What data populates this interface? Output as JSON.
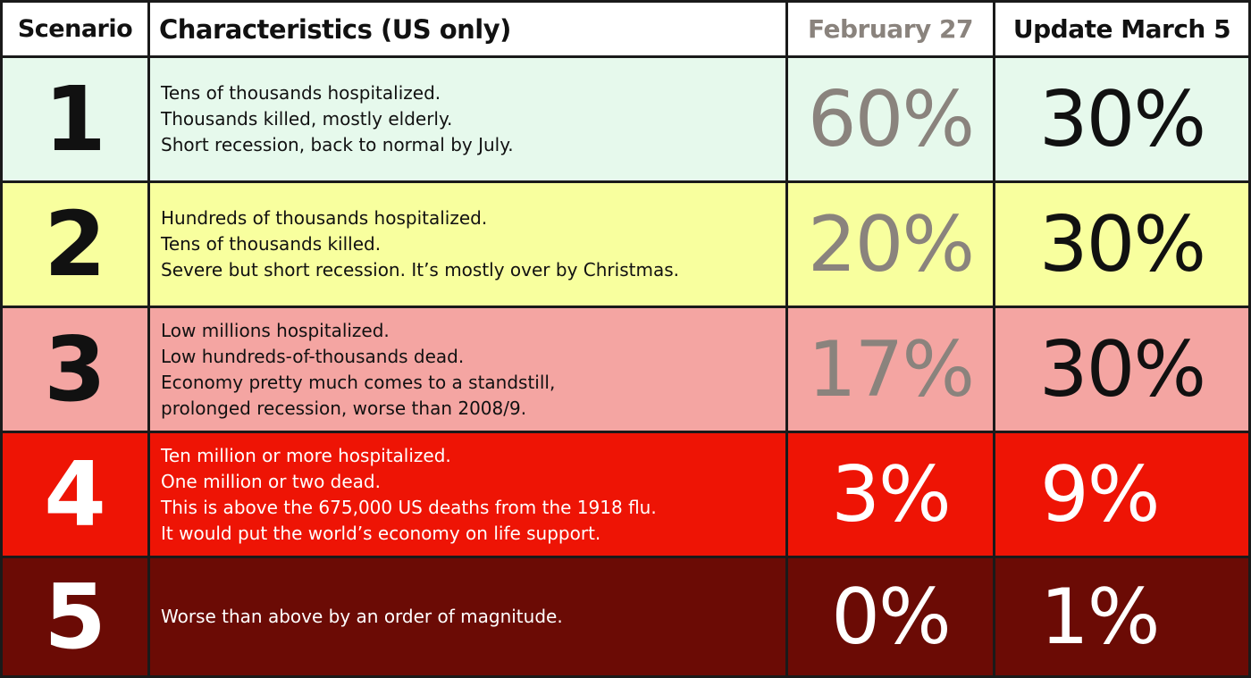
{
  "headers": {
    "scenario": "Scenario",
    "characteristics": "Characteristics (US only)",
    "feb": "February 27",
    "update": "Update March 5"
  },
  "colors": {
    "row1": "#e6f9ec",
    "row2": "#f8ff9e",
    "row3": "#f4a5a2",
    "row4": "#ee1405",
    "row5": "#6b0b05",
    "feb_text_light": "#8a837d",
    "dark_text": "#111111",
    "light_text": "#ffffff"
  },
  "chart_data": {
    "type": "table",
    "columns": [
      "Scenario",
      "Characteristics (US only)",
      "February 27",
      "Update March 5"
    ],
    "rows": [
      {
        "scenario": "1",
        "characteristics": [
          "Tens of thousands hospitalized.",
          "Thousands killed, mostly elderly.",
          "Short recession, back to normal by July."
        ],
        "feb": "60%",
        "update": "30%"
      },
      {
        "scenario": "2",
        "characteristics": [
          "Hundreds of thousands hospitalized.",
          "Tens of thousands killed.",
          "Severe but short recession. It’s mostly over by Christmas."
        ],
        "feb": "20%",
        "update": "30%"
      },
      {
        "scenario": "3",
        "characteristics": [
          "Low millions hospitalized.",
          "Low hundreds-of-thousands dead.",
          "Economy pretty much comes to a standstill,",
          "prolonged recession, worse than 2008/9."
        ],
        "feb": "17%",
        "update": "30%"
      },
      {
        "scenario": "4",
        "characteristics": [
          "Ten million or more hospitalized.",
          "One million or two dead.",
          "This is above the 675,000 US deaths from the 1918 flu.",
          "It would put the world’s economy on life support."
        ],
        "feb": "3%",
        "update": "9%"
      },
      {
        "scenario": "5",
        "characteristics": [
          "Worse than above by an order of magnitude."
        ],
        "feb": "0%",
        "update": "1%"
      }
    ]
  }
}
